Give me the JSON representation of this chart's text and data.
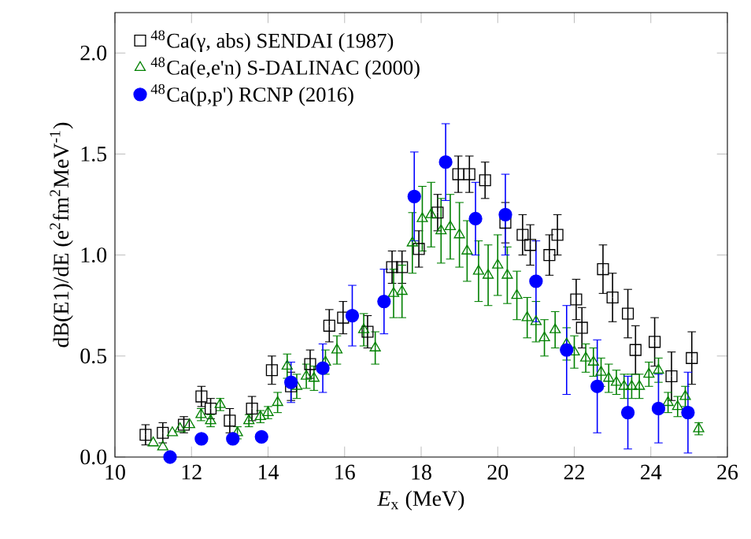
{
  "chart_data": {
    "type": "scatter",
    "xlabel": "*E*$_{x}$ (MeV)",
    "ylabel": "dB(E1)/dE (e$^{2}$fm$^{2}$MeV$^{-1}$)",
    "xlim": [
      10,
      26
    ],
    "ylim": [
      0,
      2.2
    ],
    "xticks": [
      10,
      12,
      14,
      16,
      18,
      20,
      22,
      24,
      26
    ],
    "yticks": [
      {
        "value": 0,
        "label": "0.0"
      },
      0.5,
      {
        "value": 1,
        "label": "1.0"
      },
      1.5,
      {
        "value": 2,
        "label": "2.0"
      }
    ],
    "legend": "top left",
    "grid": false,
    "series": [
      {
        "name": "$^{48}$Ca(γ, abs) SENDAI (1987)",
        "color": "#000000",
        "marker": "square",
        "x": [
          10.8,
          11.25,
          11.8,
          12.26,
          12.5,
          13.0,
          13.58,
          14.1,
          14.6,
          15.1,
          15.6,
          15.96,
          16.6,
          17.24,
          17.5,
          17.94,
          18.43,
          18.97,
          19.26,
          19.67,
          20.2,
          20.65,
          20.85,
          21.35,
          21.56,
          22.05,
          22.2,
          22.75,
          23.0,
          23.4,
          23.6,
          24.1,
          24.54,
          25.07
        ],
        "values": [
          0.11,
          0.12,
          0.16,
          0.3,
          0.24,
          0.18,
          0.24,
          0.43,
          0.35,
          0.46,
          0.65,
          0.69,
          0.62,
          0.94,
          0.94,
          1.03,
          1.21,
          1.4,
          1.4,
          1.37,
          1.16,
          1.1,
          1.05,
          1.0,
          1.1,
          0.78,
          0.64,
          0.93,
          0.79,
          0.71,
          0.53,
          0.57,
          0.4,
          0.49
        ],
        "errors": [
          0.05,
          0.05,
          0.04,
          0.05,
          0.05,
          0.06,
          0.06,
          0.07,
          0.07,
          0.07,
          0.08,
          0.08,
          0.08,
          0.08,
          0.08,
          0.09,
          0.09,
          0.09,
          0.09,
          0.09,
          0.1,
          0.1,
          0.1,
          0.1,
          0.1,
          0.1,
          0.1,
          0.12,
          0.12,
          0.12,
          0.12,
          0.12,
          0.12,
          0.13
        ]
      },
      {
        "name": "$^{48}$Ca(e,e'n) S-DALINAC (2000)",
        "color": "#008000",
        "marker": "triangle",
        "x": [
          11.0,
          11.25,
          11.5,
          11.7,
          11.95,
          12.25,
          12.5,
          12.75,
          13.2,
          13.5,
          13.8,
          14.0,
          14.25,
          14.5,
          14.75,
          15.0,
          15.2,
          15.5,
          15.8,
          16.5,
          16.8,
          17.28,
          17.5,
          17.77,
          18.03,
          18.26,
          18.52,
          18.76,
          19.0,
          19.2,
          19.5,
          19.75,
          20.0,
          20.25,
          20.5,
          20.77,
          21.0,
          21.22,
          21.5,
          21.8,
          22.0,
          22.3,
          22.5,
          22.7,
          22.9,
          23.1,
          23.3,
          23.5,
          23.7,
          23.95,
          24.2,
          24.45,
          24.7,
          24.9,
          25.25
        ],
        "values": [
          0.07,
          0.05,
          0.12,
          0.14,
          0.16,
          0.21,
          0.18,
          0.26,
          0.12,
          0.18,
          0.2,
          0.22,
          0.27,
          0.45,
          0.35,
          0.4,
          0.39,
          0.47,
          0.53,
          0.63,
          0.54,
          0.81,
          0.82,
          1.06,
          1.18,
          1.2,
          1.12,
          1.14,
          1.1,
          1.02,
          0.92,
          0.9,
          0.95,
          0.9,
          0.8,
          0.69,
          0.67,
          0.59,
          0.63,
          0.56,
          0.52,
          0.49,
          0.47,
          0.42,
          0.39,
          0.37,
          0.35,
          0.35,
          0.35,
          0.41,
          0.43,
          0.27,
          0.25,
          0.3,
          0.14
        ],
        "errors": [
          null,
          null,
          null,
          null,
          null,
          0.03,
          0.03,
          0.03,
          0.03,
          0.03,
          0.03,
          0.03,
          0.05,
          0.06,
          0.06,
          0.06,
          0.06,
          0.06,
          0.07,
          0.08,
          0.08,
          0.12,
          0.13,
          0.15,
          0.16,
          0.16,
          0.16,
          0.16,
          0.16,
          0.15,
          0.15,
          0.15,
          0.15,
          0.14,
          0.12,
          0.1,
          0.1,
          0.09,
          0.09,
          0.08,
          0.08,
          0.07,
          0.07,
          0.07,
          0.07,
          0.06,
          0.06,
          0.06,
          0.06,
          0.06,
          0.06,
          0.05,
          0.05,
          0.05,
          0.03
        ]
      },
      {
        "name": "$^{48}$Ca(p,p') RCNP (2016)",
        "color": "#0000ff",
        "marker": "circle",
        "x": [
          11.44,
          12.26,
          13.08,
          13.83,
          14.6,
          15.43,
          16.2,
          17.03,
          17.82,
          18.64,
          19.42,
          20.2,
          21.0,
          21.8,
          22.6,
          23.4,
          24.2,
          24.97
        ],
        "values": [
          0.0,
          0.09,
          0.09,
          0.1,
          0.37,
          0.44,
          0.7,
          0.77,
          1.29,
          1.46,
          1.18,
          1.2,
          0.87,
          0.53,
          0.35,
          0.22,
          0.24,
          0.22
        ],
        "errors": [
          0.02,
          0.02,
          0.02,
          0.02,
          0.1,
          0.12,
          0.15,
          0.16,
          0.22,
          0.19,
          0.18,
          0.2,
          0.2,
          0.22,
          0.23,
          0.18,
          0.17,
          0.2
        ]
      }
    ]
  }
}
